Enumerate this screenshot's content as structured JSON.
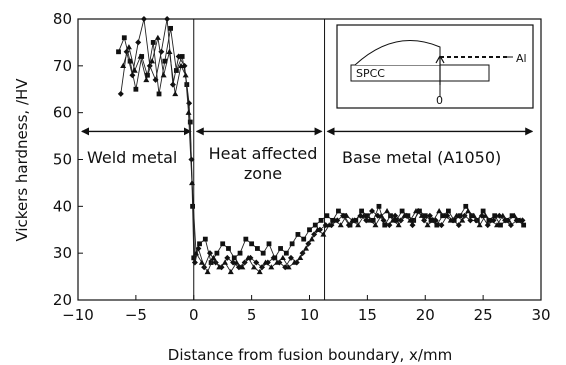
{
  "chart_data": {
    "type": "scatter",
    "title": "",
    "xlabel": "Distance from fusion boundary, x/mm",
    "ylabel": "Vickers hardness, /HV",
    "xlim": [
      -10,
      30
    ],
    "ylim": [
      20,
      80
    ],
    "x_ticks": [
      "−10",
      "−5",
      "0",
      "5",
      "10",
      "15",
      "20",
      "25",
      "30"
    ],
    "y_ticks": [
      "20",
      "30",
      "40",
      "50",
      "60",
      "70",
      "80"
    ],
    "x_tick_values": [
      -10,
      -5,
      0,
      5,
      10,
      15,
      20,
      25,
      30
    ],
    "y_tick_values": [
      20,
      30,
      40,
      50,
      60,
      70,
      80
    ],
    "grid": false,
    "boundaries": [
      0,
      11.3
    ],
    "regions": [
      {
        "label": "Weld metal",
        "from": -10,
        "to": 0
      },
      {
        "label_line1": "Heat affected",
        "label_line2": "zone",
        "from": 0,
        "to": 11.3
      },
      {
        "label": "Base metal (A1050)",
        "from": 11.3,
        "to": 29.5
      }
    ],
    "region_arrow_y": 56,
    "inset": {
      "label_spcc": "SPCC",
      "label_al": "Al",
      "label_origin": "0"
    },
    "series": [
      {
        "marker": "square",
        "x": [
          -6.5,
          -6.0,
          -5.5,
          -5.0,
          -4.5,
          -4.0,
          -3.5,
          -3.0,
          -2.5,
          -2.0,
          -1.5,
          -1.0,
          -0.6,
          -0.3,
          -0.1,
          0.0,
          0.5,
          1.0,
          1.5,
          2.0,
          2.5,
          3.0,
          3.5,
          4.0,
          4.5,
          5.0,
          5.5,
          6.0,
          6.5,
          7.0,
          7.5,
          8.0,
          8.5,
          9.0,
          9.5,
          10.0,
          10.5,
          11.0,
          11.5,
          12.0,
          12.5,
          13.0,
          13.5,
          14.0,
          14.5,
          15.0,
          15.5,
          16.0,
          16.5,
          17.0,
          17.5,
          18.0,
          18.5,
          19.0,
          19.5,
          20.0,
          20.5,
          21.0,
          21.5,
          22.0,
          22.5,
          23.0,
          23.5,
          24.0,
          24.5,
          25.0,
          25.5,
          26.0,
          26.5,
          27.0,
          27.5,
          28.0,
          28.5
        ],
        "y": [
          73,
          76,
          71,
          65,
          72,
          68,
          75,
          64,
          71,
          78,
          69,
          72,
          66,
          58,
          40,
          29,
          32,
          33,
          28,
          30,
          32,
          31,
          29,
          30,
          33,
          32,
          31,
          30,
          32,
          29,
          31,
          30,
          32,
          34,
          33,
          35,
          36,
          37,
          38,
          37,
          39,
          38,
          36,
          37,
          39,
          38,
          37,
          40,
          36,
          38,
          37,
          39,
          38,
          37,
          39,
          38,
          37,
          36,
          38,
          39,
          37,
          38,
          40,
          38,
          37,
          39,
          37,
          38,
          36,
          37,
          38,
          37,
          36
        ]
      },
      {
        "marker": "diamond",
        "x": [
          -6.3,
          -5.8,
          -5.3,
          -4.8,
          -4.3,
          -3.8,
          -3.3,
          -2.8,
          -2.3,
          -1.8,
          -1.3,
          -0.8,
          -0.4,
          -0.2,
          0.1,
          0.4,
          0.9,
          1.4,
          1.9,
          2.4,
          2.9,
          3.4,
          3.9,
          4.4,
          4.9,
          5.4,
          5.9,
          6.4,
          6.9,
          7.4,
          7.9,
          8.4,
          8.9,
          9.4,
          9.9,
          10.4,
          10.9,
          11.4,
          11.9,
          12.4,
          12.9,
          13.4,
          13.9,
          14.4,
          14.9,
          15.4,
          15.9,
          16.4,
          16.9,
          17.4,
          17.9,
          18.4,
          18.9,
          19.4,
          19.9,
          20.4,
          20.9,
          21.4,
          21.9,
          22.4,
          22.9,
          23.4,
          23.9,
          24.4,
          24.9,
          25.4,
          25.9,
          26.4,
          26.9,
          27.4,
          27.9,
          28.4
        ],
        "y": [
          64,
          73,
          68,
          75,
          80,
          70,
          67,
          73,
          80,
          66,
          72,
          70,
          62,
          50,
          28,
          31,
          27,
          30,
          28,
          27,
          29,
          28,
          27,
          28,
          29,
          28,
          27,
          28,
          29,
          28,
          27,
          29,
          28,
          30,
          32,
          34,
          35,
          36,
          36,
          37,
          38,
          36,
          37,
          38,
          37,
          39,
          38,
          37,
          36,
          38,
          37,
          38,
          36,
          39,
          37,
          38,
          37,
          36,
          38,
          37,
          36,
          38,
          37,
          37,
          38,
          36,
          37,
          38,
          37,
          36,
          37,
          37
        ]
      },
      {
        "marker": "triangle",
        "x": [
          -6.1,
          -5.6,
          -5.1,
          -4.6,
          -4.1,
          -3.6,
          -3.1,
          -2.6,
          -2.1,
          -1.6,
          -1.1,
          -0.7,
          -0.45,
          -0.15,
          0.2,
          0.7,
          1.2,
          1.7,
          2.2,
          2.7,
          3.2,
          3.7,
          4.2,
          4.7,
          5.2,
          5.7,
          6.2,
          6.7,
          7.2,
          7.7,
          8.2,
          8.7,
          9.2,
          9.7,
          10.2,
          10.7,
          11.2,
          11.7,
          12.2,
          12.7,
          13.2,
          13.7,
          14.2,
          14.7,
          15.2,
          15.7,
          16.2,
          16.7,
          17.2,
          17.7,
          18.2,
          18.7,
          19.2,
          19.7,
          20.2,
          20.7,
          21.2,
          21.7,
          22.2,
          22.7,
          23.2,
          23.7,
          24.2,
          24.7,
          25.2,
          25.7,
          26.2,
          26.7,
          27.2,
          27.7,
          28.2
        ],
        "y": [
          70,
          74,
          69,
          72,
          67,
          71,
          76,
          68,
          73,
          64,
          70,
          68,
          60,
          45,
          30,
          28,
          26,
          29,
          27,
          28,
          26,
          28,
          27,
          29,
          27,
          26,
          28,
          27,
          28,
          29,
          27,
          28,
          29,
          31,
          33,
          35,
          34,
          36,
          37,
          36,
          38,
          37,
          36,
          38,
          37,
          36,
          38,
          39,
          37,
          36,
          38,
          37,
          39,
          38,
          36,
          37,
          39,
          38,
          37,
          38,
          37,
          39,
          38,
          36,
          38,
          37,
          36,
          38,
          37,
          38,
          37
        ]
      }
    ]
  }
}
